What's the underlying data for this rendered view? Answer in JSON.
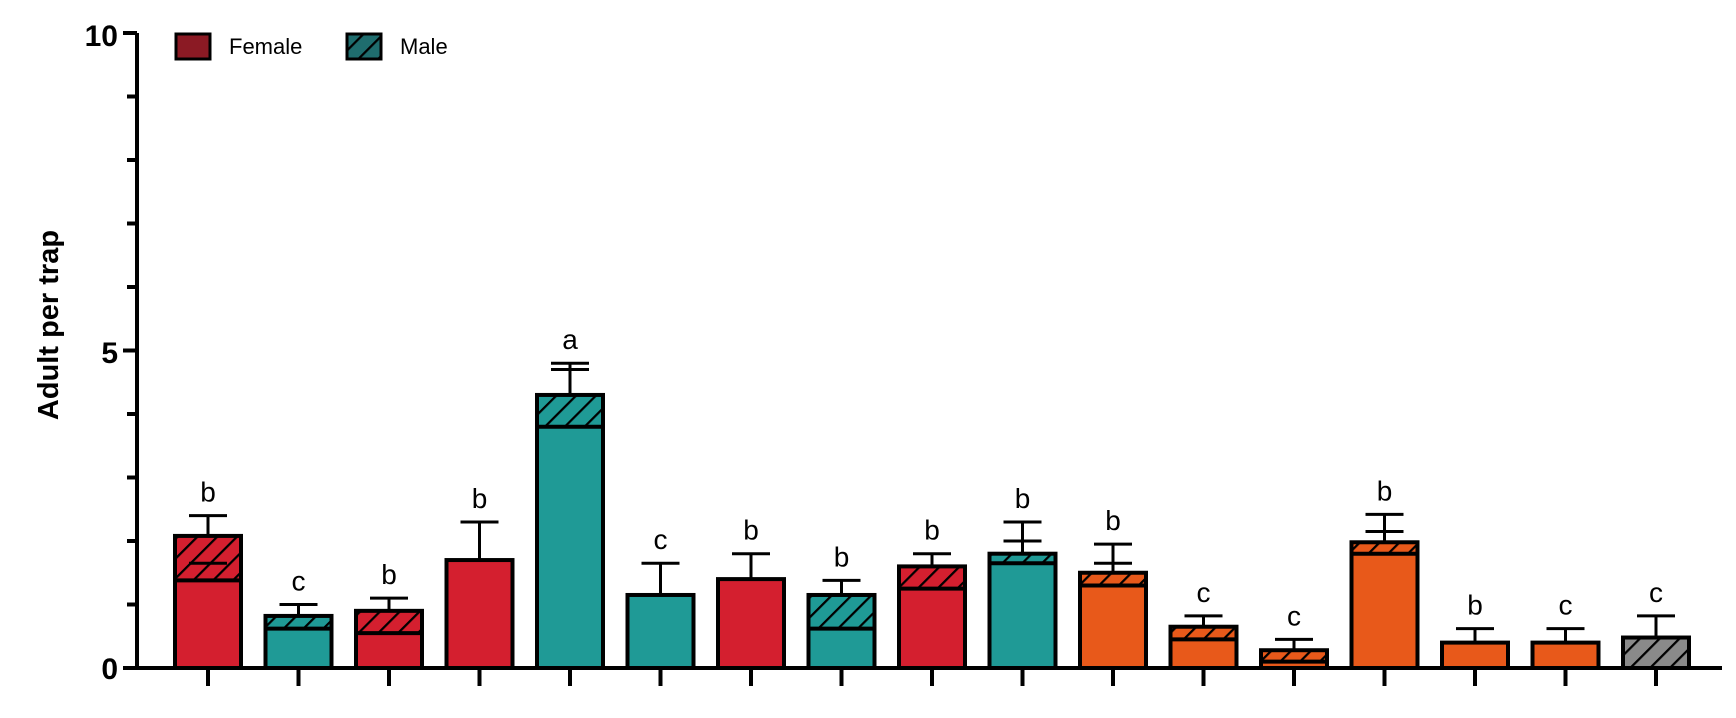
{
  "chart_data": {
    "type": "bar",
    "stacked": true,
    "ylabel": "Adult per trap",
    "ylim": [
      0,
      10
    ],
    "yticks": [
      "0",
      "5",
      "10"
    ],
    "legend": {
      "placement": "top-left",
      "entries": [
        {
          "name": "Female",
          "color": "#8b1a24",
          "pattern": "solid"
        },
        {
          "name": "Male",
          "color": "#1f6d6e",
          "pattern": "hatched"
        }
      ]
    },
    "bars": [
      {
        "female": 1.38,
        "male": 0.7,
        "total": 2.08,
        "err_f": 1.65,
        "err_total": 2.4,
        "color": "#d41f2f",
        "letter": "b"
      },
      {
        "female": 0.62,
        "male": 0.2,
        "total": 0.82,
        "err_f": null,
        "err_total": 1.0,
        "color": "#1f9a96",
        "letter": "c"
      },
      {
        "female": 0.55,
        "male": 0.35,
        "total": 0.9,
        "err_f": null,
        "err_total": 1.1,
        "color": "#d41f2f",
        "letter": "b"
      },
      {
        "female": 1.7,
        "male": 0.0,
        "total": 1.7,
        "err_f": null,
        "err_total": 2.3,
        "color": "#d41f2f",
        "letter": "b"
      },
      {
        "female": 3.8,
        "male": 0.5,
        "total": 4.3,
        "err_f": 4.7,
        "err_total": 4.8,
        "color": "#1f9a96",
        "letter": "a"
      },
      {
        "female": 1.15,
        "male": 0.0,
        "total": 1.15,
        "err_f": null,
        "err_total": 1.65,
        "color": "#1f9a96",
        "letter": "c"
      },
      {
        "female": 1.4,
        "male": 0.0,
        "total": 1.4,
        "err_f": null,
        "err_total": 1.8,
        "color": "#d41f2f",
        "letter": "b"
      },
      {
        "female": 0.62,
        "male": 0.53,
        "total": 1.15,
        "err_f": null,
        "err_total": 1.38,
        "color": "#1f9a96",
        "letter": "b"
      },
      {
        "female": 1.25,
        "male": 0.35,
        "total": 1.6,
        "err_f": null,
        "err_total": 1.8,
        "color": "#d41f2f",
        "letter": "b"
      },
      {
        "female": 1.65,
        "male": 0.15,
        "total": 1.8,
        "err_f": 2.0,
        "err_total": 2.3,
        "color": "#1f9a96",
        "letter": "b"
      },
      {
        "female": 1.3,
        "male": 0.2,
        "total": 1.5,
        "err_f": 1.65,
        "err_total": 1.95,
        "color": "#e8591a",
        "letter": "b"
      },
      {
        "female": 0.45,
        "male": 0.2,
        "total": 0.65,
        "err_f": null,
        "err_total": 0.82,
        "color": "#e8591a",
        "letter": "c"
      },
      {
        "female": 0.1,
        "male": 0.18,
        "total": 0.28,
        "err_f": null,
        "err_total": 0.45,
        "color": "#e8591a",
        "letter": "c"
      },
      {
        "female": 1.8,
        "male": 0.18,
        "total": 1.98,
        "err_f": 2.15,
        "err_total": 2.42,
        "color": "#e8591a",
        "letter": "b"
      },
      {
        "female": 0.4,
        "male": 0.0,
        "total": 0.4,
        "err_f": null,
        "err_total": 0.62,
        "color": "#e8591a",
        "letter": "b"
      },
      {
        "female": 0.4,
        "male": 0.0,
        "total": 0.4,
        "err_f": null,
        "err_total": 0.62,
        "color": "#e8591a",
        "letter": "c"
      },
      {
        "female": 0.0,
        "male": 0.48,
        "total": 0.48,
        "err_f": null,
        "err_total": 0.82,
        "color": "#8a8a8a",
        "letter": "c"
      }
    ]
  }
}
